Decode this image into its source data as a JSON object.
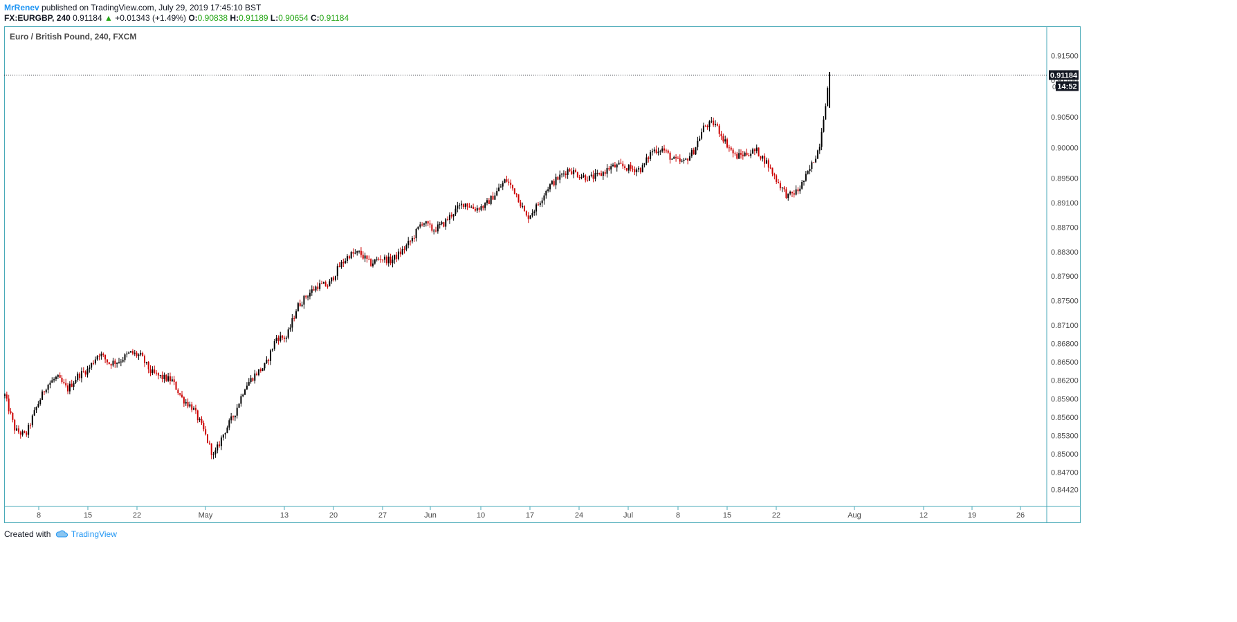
{
  "header": {
    "author": "MrRenev",
    "published_text": "published on TradingView.com, July 29, 2019 17:45:10 BST"
  },
  "ohlc_bar": {
    "symbol": "FX:EURGBP, 240",
    "last": "0.91184",
    "change": "+0.01343 (+1.49%)",
    "o_label": "O:",
    "o_value": "0.90838",
    "h_label": "H:",
    "h_value": "0.91189",
    "l_label": "L:",
    "l_value": "0.90654",
    "c_label": "C:",
    "c_value": "0.91184",
    "up_color": "#26a617"
  },
  "chart_title": "Euro / British Pound, 240, FXCM",
  "price_badge": {
    "price": "0.91184",
    "countdown": "14:52"
  },
  "footer": {
    "created_with": "Created with",
    "brand": "TradingView"
  },
  "chart_data": {
    "type": "candlestick",
    "title": "Euro / British Pound, 240, FXCM",
    "interval": "240",
    "up_color": "#000000",
    "down_color": "#cc0000",
    "ylim": [
      0.8427,
      0.9185
    ],
    "y_ticks": [
      "0.91500",
      "0.91100",
      "0.90500",
      "0.90000",
      "0.89500",
      "0.89100",
      "0.88700",
      "0.88300",
      "0.87900",
      "0.87500",
      "0.87100",
      "0.86800",
      "0.86500",
      "0.86200",
      "0.85900",
      "0.85600",
      "0.85300",
      "0.85000",
      "0.84700",
      "0.84420"
    ],
    "x_ticks": [
      "8",
      "15",
      "22",
      "May",
      "13",
      "20",
      "27",
      "Jun",
      "10",
      "17",
      "24",
      "Jul",
      "8",
      "15",
      "22",
      "Aug",
      "12",
      "19",
      "26"
    ],
    "last_price": 0.91184,
    "trend_points": [
      [
        "Apr 3",
        0.8595
      ],
      [
        "Apr 4",
        0.8538
      ],
      [
        "Apr 6",
        0.853
      ],
      [
        "Apr 7",
        0.8575
      ],
      [
        "Apr 8",
        0.8612
      ],
      [
        "Apr 10",
        0.8625
      ],
      [
        "Apr 12",
        0.8605
      ],
      [
        "Apr 14",
        0.8628
      ],
      [
        "Apr 16",
        0.8638
      ],
      [
        "Apr 18",
        0.8665
      ],
      [
        "Apr 20",
        0.8648
      ],
      [
        "Apr 22",
        0.8652
      ],
      [
        "Apr 24",
        0.8665
      ],
      [
        "Apr 25",
        0.866
      ],
      [
        "Apr 27",
        0.8633
      ],
      [
        "Apr 29",
        0.8625
      ],
      [
        "May 1",
        0.862
      ],
      [
        "May 2",
        0.859
      ],
      [
        "May 4",
        0.8575
      ],
      [
        "May 6",
        0.854
      ],
      [
        "May 6b",
        0.8495
      ],
      [
        "May 7",
        0.8535
      ],
      [
        "May 9",
        0.8565
      ],
      [
        "May 11",
        0.861
      ],
      [
        "May 12",
        0.863
      ],
      [
        "May 13",
        0.8645
      ],
      [
        "May 14",
        0.869
      ],
      [
        "May 16",
        0.869
      ],
      [
        "May 17",
        0.874
      ],
      [
        "May 18",
        0.876
      ],
      [
        "May 20",
        0.8775
      ],
      [
        "May 21",
        0.8775
      ],
      [
        "May 22",
        0.8805
      ],
      [
        "May 23",
        0.8825
      ],
      [
        "May 24",
        0.8828
      ],
      [
        "May 25",
        0.881
      ],
      [
        "May 27",
        0.882
      ],
      [
        "May 29",
        0.8815
      ],
      [
        "May 30",
        0.883
      ],
      [
        "Jun 1",
        0.885
      ],
      [
        "Jun 2",
        0.888
      ],
      [
        "Jun 4",
        0.8865
      ],
      [
        "Jun 6",
        0.8875
      ],
      [
        "Jun 8",
        0.8895
      ],
      [
        "Jun 10",
        0.891
      ],
      [
        "Jun 12",
        0.89
      ],
      [
        "Jun 14",
        0.8905
      ],
      [
        "Jun 16",
        0.8925
      ],
      [
        "Jun 17",
        0.8948
      ],
      [
        "Jun 18",
        0.8925
      ],
      [
        "Jun 20",
        0.8885
      ],
      [
        "Jun 22",
        0.8905
      ],
      [
        "Jun 23",
        0.8935
      ],
      [
        "Jun 25",
        0.895
      ],
      [
        "Jun 26",
        0.8965
      ],
      [
        "Jun 28",
        0.8955
      ],
      [
        "Jun 29",
        0.895
      ],
      [
        "Jul 1",
        0.8955
      ],
      [
        "Jul 2",
        0.8968
      ],
      [
        "Jul 4",
        0.897
      ],
      [
        "Jul 6",
        0.8965
      ],
      [
        "Jul 7",
        0.8965
      ],
      [
        "Jul 9",
        0.8995
      ],
      [
        "Jul 10",
        0.8998
      ],
      [
        "Jul 12",
        0.898
      ],
      [
        "Jul 13",
        0.8975
      ],
      [
        "Jul 14",
        0.8995
      ],
      [
        "Jul 16",
        0.9035
      ],
      [
        "Jul 17",
        0.904
      ],
      [
        "Jul 18",
        0.901
      ],
      [
        "Jul 19",
        0.8985
      ],
      [
        "Jul 21",
        0.899
      ],
      [
        "Jul 22",
        0.8995
      ],
      [
        "Jul 23",
        0.8975
      ],
      [
        "Jul 24",
        0.8945
      ],
      [
        "Jul 25",
        0.892
      ],
      [
        "Jul 26",
        0.893
      ],
      [
        "Jul 27",
        0.896
      ],
      [
        "Jul 28",
        0.9
      ],
      [
        "Jul 29",
        0.9118
      ]
    ]
  }
}
